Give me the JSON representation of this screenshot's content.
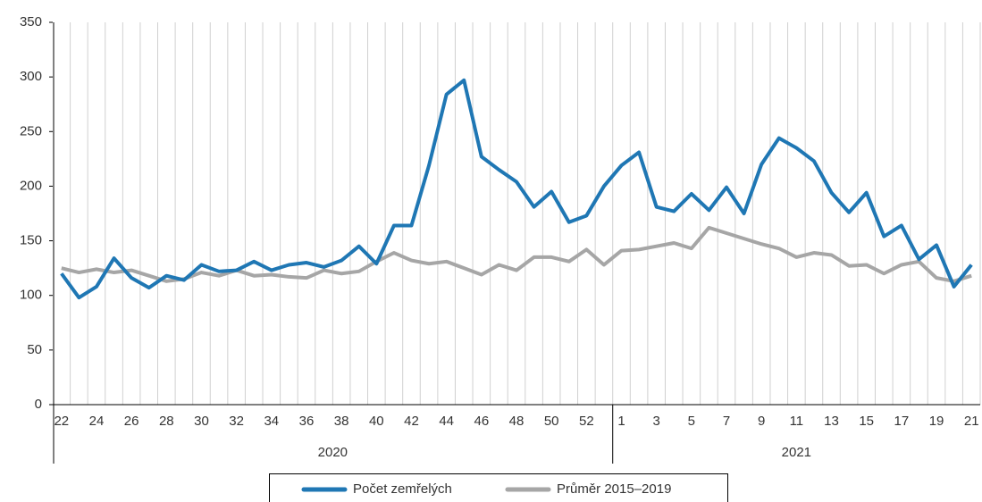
{
  "chart_data": {
    "type": "line",
    "categories": [
      22,
      null,
      24,
      null,
      26,
      null,
      28,
      null,
      30,
      null,
      32,
      null,
      34,
      null,
      36,
      null,
      38,
      null,
      40,
      null,
      42,
      null,
      44,
      null,
      46,
      null,
      48,
      null,
      50,
      null,
      52,
      null,
      1,
      null,
      3,
      null,
      5,
      null,
      7,
      null,
      9,
      null,
      11,
      null,
      13,
      null,
      15,
      null,
      17,
      null,
      19,
      null,
      21
    ],
    "groups": [
      "2020",
      "2021"
    ],
    "series": [
      {
        "name": "Počet zemřelých",
        "color": "#1f77b4",
        "values": [
          120,
          98,
          108,
          134,
          116,
          107,
          118,
          114,
          128,
          122,
          123,
          131,
          123,
          128,
          130,
          126,
          132,
          145,
          129,
          164,
          164,
          219,
          284,
          297,
          227,
          215,
          204,
          181,
          195,
          167,
          173,
          200,
          219,
          231,
          181,
          177,
          193,
          178,
          199,
          175,
          220,
          244,
          235,
          223,
          194,
          176,
          194,
          154,
          164,
          133,
          146,
          108,
          128
        ]
      },
      {
        "name": "Průměr 2015–2019",
        "color": "#a6a6a6",
        "values": [
          125,
          121,
          124,
          121,
          123,
          118,
          113,
          115,
          121,
          118,
          123,
          118,
          119,
          117,
          116,
          123,
          120,
          122,
          131,
          139,
          132,
          129,
          131,
          125,
          119,
          128,
          123,
          135,
          135,
          131,
          142,
          128,
          141,
          142,
          145,
          148,
          143,
          162,
          157,
          152,
          147,
          143,
          135,
          139,
          137,
          127,
          128,
          120,
          128,
          131,
          116,
          113,
          118
        ]
      }
    ],
    "ylim": [
      0,
      350
    ],
    "yticks": [
      0,
      50,
      100,
      150,
      200,
      250,
      300,
      350
    ],
    "grid": true,
    "legend": "bottom"
  }
}
